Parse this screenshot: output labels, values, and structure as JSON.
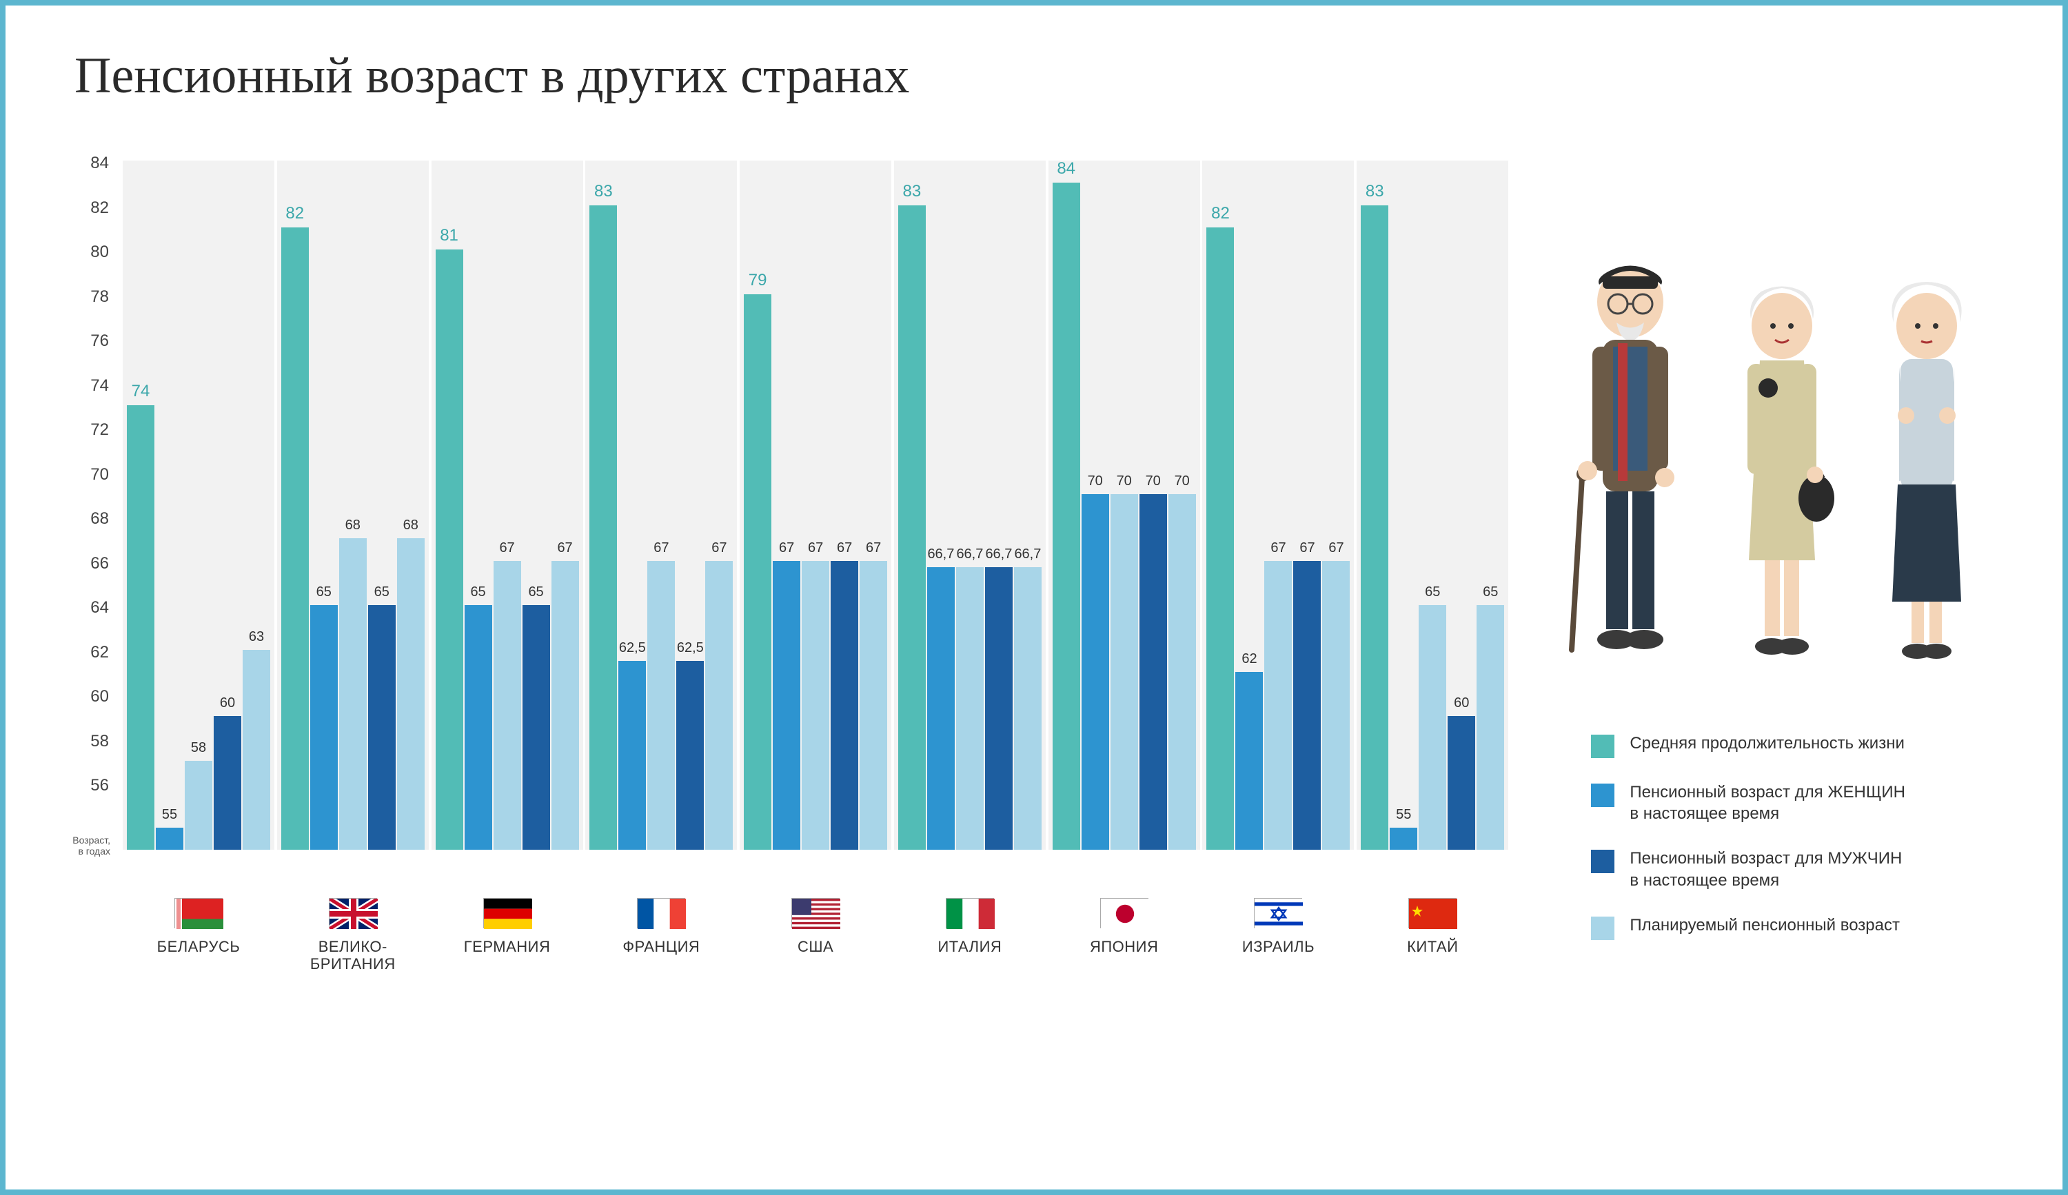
{
  "title": "Пенсионный возраст в других странах",
  "chart": {
    "type": "bar",
    "y_min": 54,
    "y_max": 85,
    "y_ticks": [
      56,
      58,
      60,
      62,
      64,
      66,
      68,
      70,
      72,
      74,
      76,
      78,
      80,
      82,
      84
    ],
    "y_axis_label": "Возраст,\nв годах",
    "background_color": "#ffffff",
    "group_bg": "#f2f2f2",
    "series": [
      {
        "key": "life",
        "color": "#52bcb6",
        "label": "Средняя продолжительность жизни"
      },
      {
        "key": "women",
        "color": "#2d94d0",
        "label": "Пенсионный возраст для ЖЕНЩИН\nв настоящее время"
      },
      {
        "key": "women_plan",
        "color": "#a8d5e8",
        "label": "Планируемый пенсионный возраст"
      },
      {
        "key": "men",
        "color": "#1d5ea0",
        "label": "Пенсионный возраст для МУЖЧИН\nв настоящее время"
      },
      {
        "key": "men_plan",
        "color": "#a8d5e8",
        "label": "Планируемый пенсионный возраст"
      }
    ],
    "legend_order": [
      "life",
      "women",
      "men",
      "women_plan"
    ],
    "countries": [
      {
        "name": "БЕЛАРУСЬ",
        "flag": "belarus",
        "values": {
          "life": 74,
          "women": 55,
          "women_plan": 58,
          "men": 60,
          "men_plan": 63
        }
      },
      {
        "name": "ВЕЛИКО-\nБРИТАНИЯ",
        "flag": "uk",
        "values": {
          "life": 82,
          "women": 65,
          "women_plan": 68,
          "men": 65,
          "men_plan": 68
        }
      },
      {
        "name": "ГЕРМАНИЯ",
        "flag": "germany",
        "values": {
          "life": 81,
          "women": 65,
          "women_plan": 67,
          "men": 65,
          "men_plan": 67
        }
      },
      {
        "name": "ФРАНЦИЯ",
        "flag": "france",
        "values": {
          "life": 83,
          "women": 62.5,
          "women_plan": 67,
          "men": 62.5,
          "men_plan": 67
        }
      },
      {
        "name": "США",
        "flag": "usa",
        "values": {
          "life": 79,
          "women": 67,
          "women_plan": 67,
          "men": 67,
          "men_plan": 67
        }
      },
      {
        "name": "ИТАЛИЯ",
        "flag": "italy",
        "values": {
          "life": 83,
          "women": 66.7,
          "women_plan": 66.7,
          "men": 66.7,
          "men_plan": 66.7
        }
      },
      {
        "name": "ЯПОНИЯ",
        "flag": "japan",
        "values": {
          "life": 84,
          "women": 70,
          "women_plan": 70,
          "men": 70,
          "men_plan": 70
        }
      },
      {
        "name": "ИЗРАИЛЬ",
        "flag": "israel",
        "values": {
          "life": 82,
          "women": 62,
          "women_plan": 67,
          "men": 67,
          "men_plan": 67
        }
      },
      {
        "name": "КИТАЙ",
        "flag": "china",
        "values": {
          "life": 83,
          "women": 55,
          "women_plan": 65,
          "men": 60,
          "men_plan": 65
        }
      }
    ]
  },
  "colors": {
    "border": "#5cb6cf",
    "title": "#2a2a2a",
    "tick": "#444444"
  },
  "fonts": {
    "title_size": 74,
    "tick_size": 24,
    "bar_label_size": 20,
    "x_label_size": 22,
    "legend_size": 24
  }
}
